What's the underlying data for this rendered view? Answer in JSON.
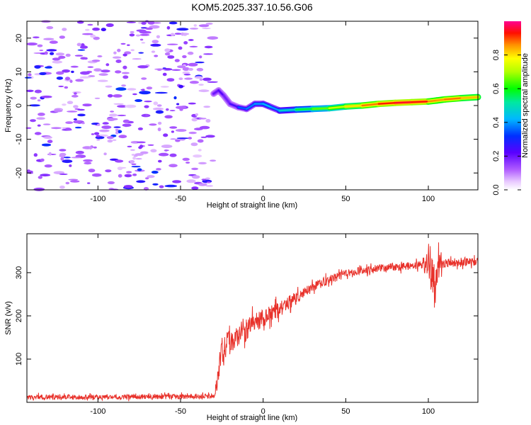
{
  "title": "KOM5.2025.337.10.56.G06",
  "chart_data": [
    {
      "type": "heatmap",
      "xlabel": "Height of straight line (km)",
      "ylabel": "Frequency (Hz)",
      "xlim": [
        -143,
        130
      ],
      "ylim": [
        -25,
        25
      ],
      "xticks": [
        -100,
        -50,
        0,
        50,
        100
      ],
      "xtick_labels": [
        "-100",
        "-50",
        "0",
        "50",
        "100"
      ],
      "yticks": [
        -20,
        -10,
        0,
        10,
        20
      ],
      "ytick_labels": [
        "-20",
        "-10",
        "0",
        "10",
        "20"
      ],
      "noise_region_x": [
        -143,
        -30
      ],
      "noise_amplitude_range": [
        0.05,
        0.25
      ],
      "ridge": [
        {
          "x": -30,
          "y": 3.5,
          "amp": 0.15
        },
        {
          "x": -27,
          "y": 4.5,
          "amp": 0.25
        },
        {
          "x": -24,
          "y": 3.0,
          "amp": 0.2
        },
        {
          "x": -20,
          "y": 0.5,
          "amp": 0.18
        },
        {
          "x": -15,
          "y": -0.5,
          "amp": 0.3
        },
        {
          "x": -10,
          "y": -1.0,
          "amp": 0.4
        },
        {
          "x": -5,
          "y": 0.5,
          "amp": 0.35
        },
        {
          "x": 0,
          "y": 0.5,
          "amp": 0.45
        },
        {
          "x": 5,
          "y": -0.5,
          "amp": 0.4
        },
        {
          "x": 10,
          "y": -1.5,
          "amp": 0.4
        },
        {
          "x": 20,
          "y": -1.2,
          "amp": 0.55
        },
        {
          "x": 30,
          "y": -1.0,
          "amp": 0.6
        },
        {
          "x": 40,
          "y": -0.8,
          "amp": 0.7
        },
        {
          "x": 50,
          "y": -0.3,
          "amp": 0.75
        },
        {
          "x": 60,
          "y": 0.0,
          "amp": 0.85
        },
        {
          "x": 70,
          "y": 0.5,
          "amp": 0.9
        },
        {
          "x": 80,
          "y": 0.8,
          "amp": 0.95
        },
        {
          "x": 90,
          "y": 1.0,
          "amp": 0.95
        },
        {
          "x": 100,
          "y": 1.2,
          "amp": 0.92
        },
        {
          "x": 105,
          "y": 1.5,
          "amp": 0.8
        },
        {
          "x": 110,
          "y": 1.8,
          "amp": 0.9
        },
        {
          "x": 120,
          "y": 2.2,
          "amp": 0.85
        },
        {
          "x": 130,
          "y": 2.5,
          "amp": 0.8
        }
      ]
    },
    {
      "type": "line",
      "xlabel": "Height of straight line (km)",
      "ylabel": "SNR (v/v)",
      "xlim": [
        -143,
        130
      ],
      "ylim": [
        0,
        390
      ],
      "xticks": [
        -100,
        -50,
        0,
        50,
        100
      ],
      "xtick_labels": [
        "-100",
        "-50",
        "0",
        "50",
        "100"
      ],
      "yticks": [
        100,
        200,
        300
      ],
      "ytick_labels": [
        "100",
        "200",
        "300"
      ],
      "series": [
        {
          "name": "SNR",
          "color": "#e8312a",
          "x": [
            -143,
            -120,
            -100,
            -80,
            -60,
            -40,
            -30,
            -28,
            -26,
            -24,
            -22,
            -20,
            -18,
            -16,
            -14,
            -12,
            -10,
            -8,
            -6,
            -4,
            -2,
            0,
            5,
            10,
            15,
            20,
            25,
            30,
            35,
            40,
            45,
            50,
            55,
            60,
            65,
            70,
            75,
            80,
            85,
            90,
            95,
            100,
            102,
            104,
            106,
            110,
            115,
            120,
            125,
            130
          ],
          "y": [
            12,
            12,
            12,
            13,
            13,
            13,
            14,
            40,
            105,
            120,
            140,
            135,
            150,
            155,
            165,
            170,
            160,
            175,
            180,
            185,
            190,
            195,
            205,
            215,
            230,
            240,
            255,
            265,
            275,
            285,
            290,
            298,
            302,
            305,
            308,
            310,
            312,
            313,
            315,
            316,
            318,
            320,
            300,
            260,
            320,
            322,
            323,
            325,
            325,
            324
          ],
          "noise": [
            8,
            8,
            8,
            8,
            8,
            8,
            8,
            30,
            40,
            40,
            45,
            45,
            40,
            40,
            40,
            38,
            35,
            35,
            35,
            32,
            30,
            30,
            28,
            25,
            22,
            20,
            18,
            15,
            15,
            14,
            14,
            13,
            13,
            13,
            13,
            13,
            13,
            13,
            13,
            13,
            14,
            40,
            70,
            70,
            40,
            14,
            14,
            14,
            14,
            14
          ]
        }
      ]
    }
  ],
  "colorbar": {
    "label": "Normalized spectral amplitude",
    "range": [
      0,
      1
    ],
    "ticks": [
      0.0,
      0.2,
      0.4,
      0.6,
      0.8
    ],
    "tick_labels": [
      "0.0",
      "0.2",
      "0.4",
      "0.6",
      "0.8"
    ]
  }
}
